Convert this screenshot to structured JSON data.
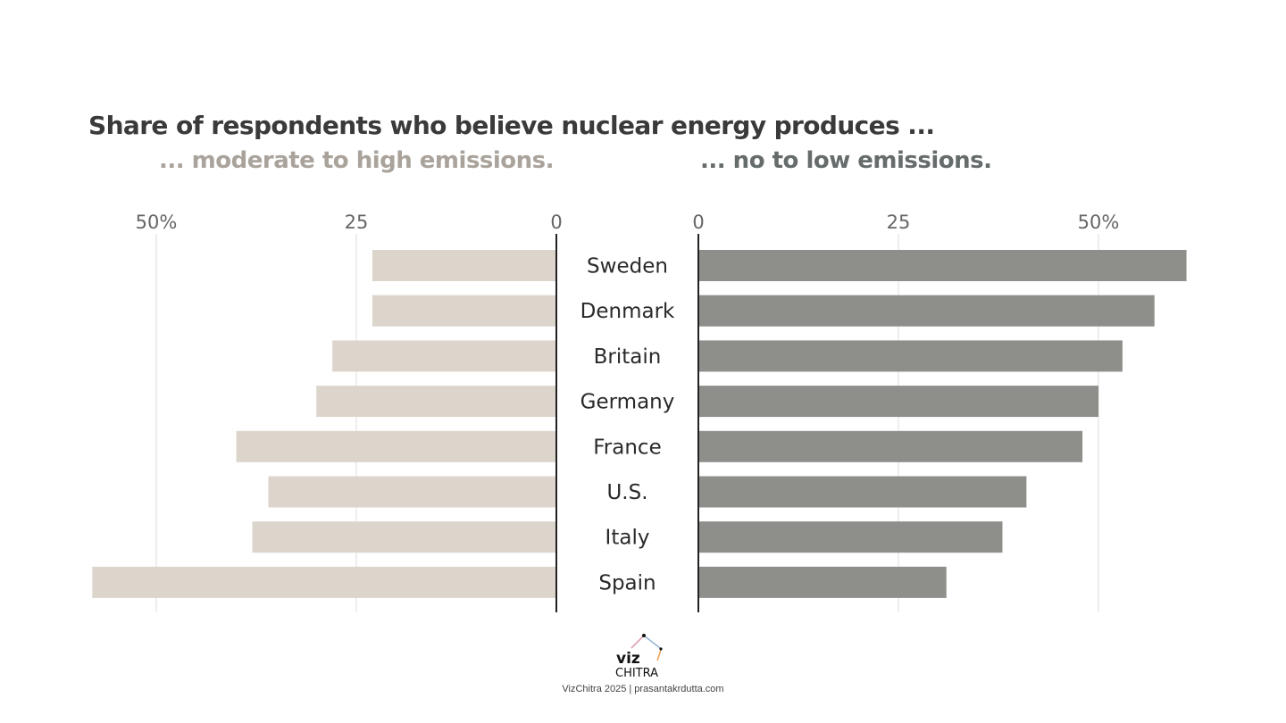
{
  "chart_data": {
    "type": "bar",
    "title": "Share of respondents who believe nuclear energy produces ...",
    "subtitles": {
      "left": "... moderate to high emissions.",
      "right": "... no to low emissions."
    },
    "categories": [
      "Sweden",
      "Denmark",
      "Britain",
      "Germany",
      "France",
      "U.S.",
      "Italy",
      "Spain"
    ],
    "series": [
      {
        "name": "... moderate to high emissions.",
        "values": [
          23,
          23,
          28,
          30,
          40,
          36,
          38,
          58
        ]
      },
      {
        "name": "... no to low emissions.",
        "values": [
          61,
          57,
          53,
          50,
          48,
          41,
          38,
          31
        ]
      }
    ],
    "left_axis": {
      "ticks": [
        {
          "value": 50,
          "label": "50%"
        },
        {
          "value": 25,
          "label": "25"
        },
        {
          "value": 0,
          "label": "0"
        }
      ]
    },
    "right_axis": {
      "ticks": [
        {
          "value": 0,
          "label": "0"
        },
        {
          "value": 25,
          "label": "25"
        },
        {
          "value": 50,
          "label": "50%"
        }
      ]
    },
    "xlim": [
      0,
      61
    ],
    "grid": true,
    "colors": {
      "left_bar": "#dcd5cc",
      "right_bar": "#8e8f8b",
      "grid": "#dddddd",
      "axis": "#222222",
      "label": "#2a2a2a",
      "tick": "#666666"
    }
  },
  "footer": {
    "logo_line1": "viz",
    "logo_line2": "CHITRA",
    "credit": "VizChitra 2025 | prasantakrdutta.com"
  }
}
